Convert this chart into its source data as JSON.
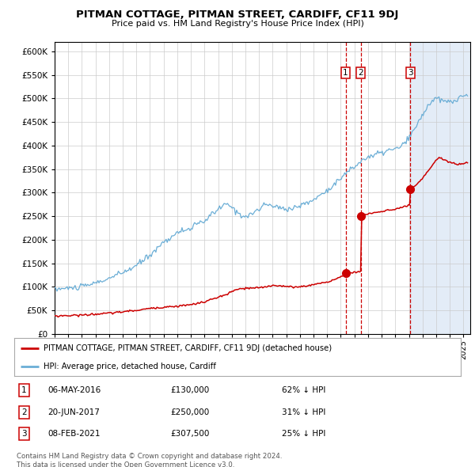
{
  "title": "PITMAN COTTAGE, PITMAN STREET, CARDIFF, CF11 9DJ",
  "subtitle": "Price paid vs. HM Land Registry's House Price Index (HPI)",
  "hpi_label": "HPI: Average price, detached house, Cardiff",
  "property_label": "PITMAN COTTAGE, PITMAN STREET, CARDIFF, CF11 9DJ (detached house)",
  "footnote": "Contains HM Land Registry data © Crown copyright and database right 2024.\nThis data is licensed under the Open Government Licence v3.0.",
  "transactions": [
    {
      "num": 1,
      "date": "06-MAY-2016",
      "price": 130000,
      "pct": "62%",
      "direction": "↓",
      "x_year": 2016.35
    },
    {
      "num": 2,
      "date": "20-JUN-2017",
      "price": 250000,
      "pct": "31%",
      "direction": "↓",
      "x_year": 2017.47
    },
    {
      "num": 3,
      "date": "08-FEB-2021",
      "price": 307500,
      "pct": "25%",
      "direction": "↓",
      "x_year": 2021.1
    }
  ],
  "hpi_color": "#6baed6",
  "property_color": "#cc0000",
  "vline_color": "#cc0000",
  "shading_color": "#dce8f5",
  "background_fig": "#ffffff",
  "ylim": [
    0,
    620000
  ],
  "xlim_start": 1995.0,
  "xlim_end": 2025.5,
  "yticks": [
    0,
    50000,
    100000,
    150000,
    200000,
    250000,
    300000,
    350000,
    400000,
    450000,
    500000,
    550000,
    600000
  ],
  "ytick_labels": [
    "£0",
    "£50K",
    "£100K",
    "£150K",
    "£200K",
    "£250K",
    "£300K",
    "£350K",
    "£400K",
    "£450K",
    "£500K",
    "£550K",
    "£600K"
  ]
}
